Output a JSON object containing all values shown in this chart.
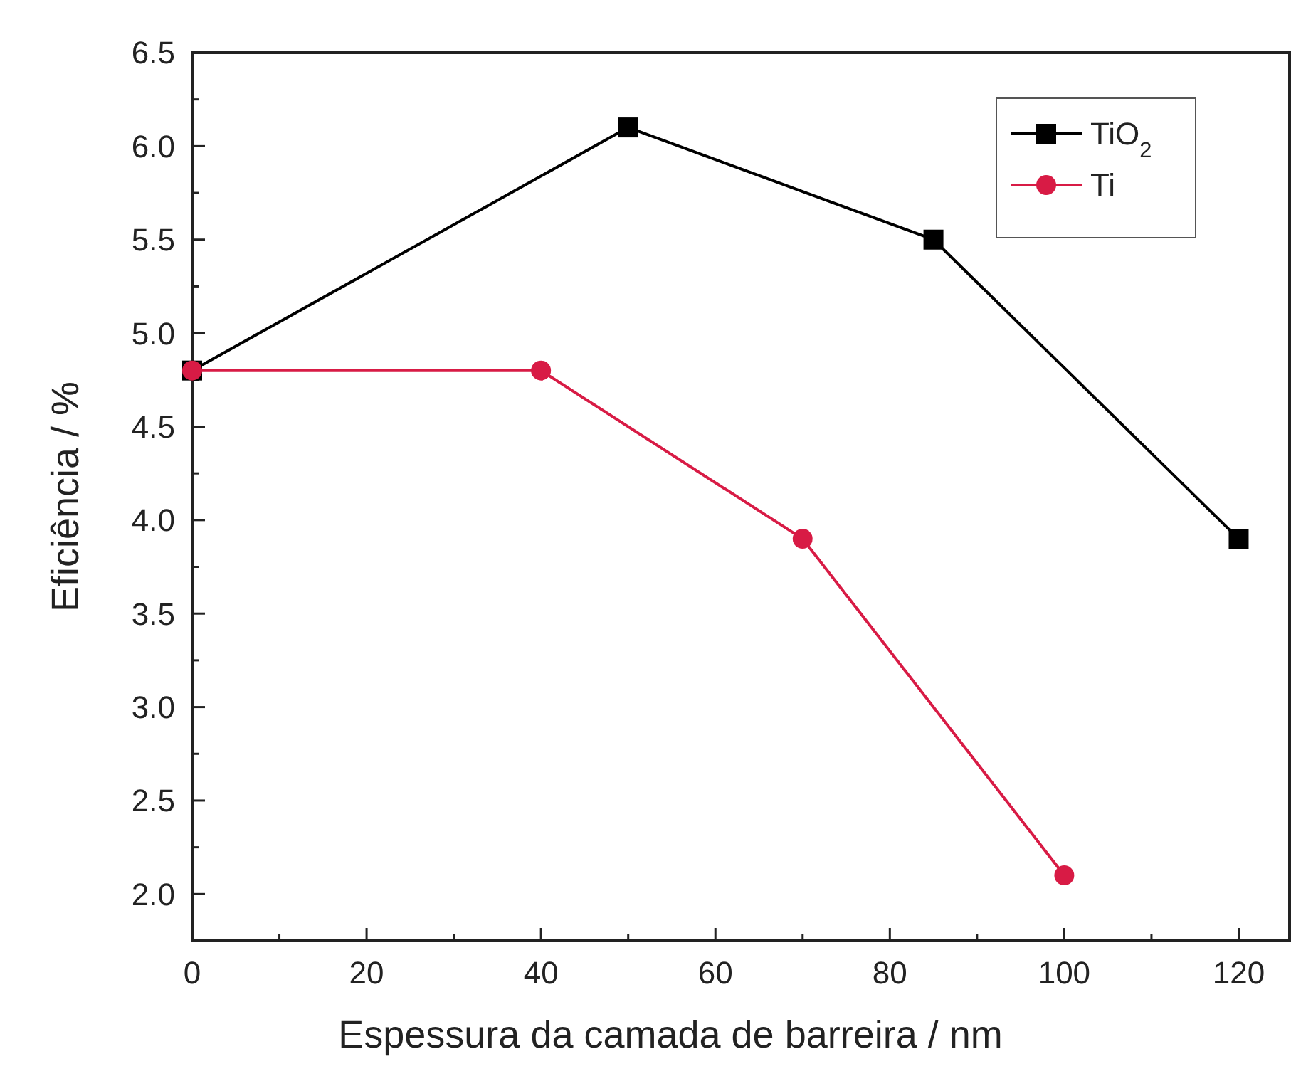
{
  "chart_data": {
    "type": "line",
    "xlabel": "Espessura da camada de barreira / nm",
    "ylabel": "Eficiência / %",
    "xlim": [
      0,
      126
    ],
    "ylim": [
      1.75,
      6.5
    ],
    "xticks": [
      0,
      {
        "value": 10,
        "label": null
      },
      20,
      {
        "value": 30,
        "label": null
      },
      40,
      {
        "value": 50,
        "label": null
      },
      60,
      {
        "value": 70,
        "label": null
      },
      80,
      {
        "value": 90,
        "label": null
      },
      100,
      {
        "value": 110,
        "label": null
      },
      120
    ],
    "yticks": [
      {
        "value": 2.0,
        "label": "2.0"
      },
      {
        "value": 2.25,
        "label": null
      },
      {
        "value": 2.5,
        "label": "2.5"
      },
      {
        "value": 2.75,
        "label": null
      },
      {
        "value": 3.0,
        "label": "3.0"
      },
      {
        "value": 3.25,
        "label": null
      },
      {
        "value": 3.5,
        "label": "3.5"
      },
      {
        "value": 3.75,
        "label": null
      },
      {
        "value": 4.0,
        "label": "4.0"
      },
      {
        "value": 4.25,
        "label": null
      },
      {
        "value": 4.5,
        "label": "4.5"
      },
      {
        "value": 4.75,
        "label": null
      },
      {
        "value": 5.0,
        "label": "5.0"
      },
      {
        "value": 5.25,
        "label": null
      },
      {
        "value": 5.5,
        "label": "5.5"
      },
      {
        "value": 5.75,
        "label": null
      },
      {
        "value": 6.0,
        "label": "6.0"
      },
      {
        "value": 6.25,
        "label": null
      },
      {
        "value": 6.5,
        "label": "6.5"
      }
    ],
    "legend": "top right",
    "grid": false,
    "line_style": "solid",
    "series": [
      {
        "name": "TiO$_{2}$",
        "color": "#000000",
        "marker": "square",
        "x": [
          0,
          50,
          85,
          120
        ],
        "values": [
          4.8,
          6.1,
          5.5,
          3.9
        ]
      },
      {
        "name": "Ti",
        "color": "#d81b45",
        "marker": "circle",
        "x": [
          0,
          40,
          70,
          100
        ],
        "values": [
          4.8,
          4.8,
          3.9,
          2.1
        ]
      }
    ]
  }
}
